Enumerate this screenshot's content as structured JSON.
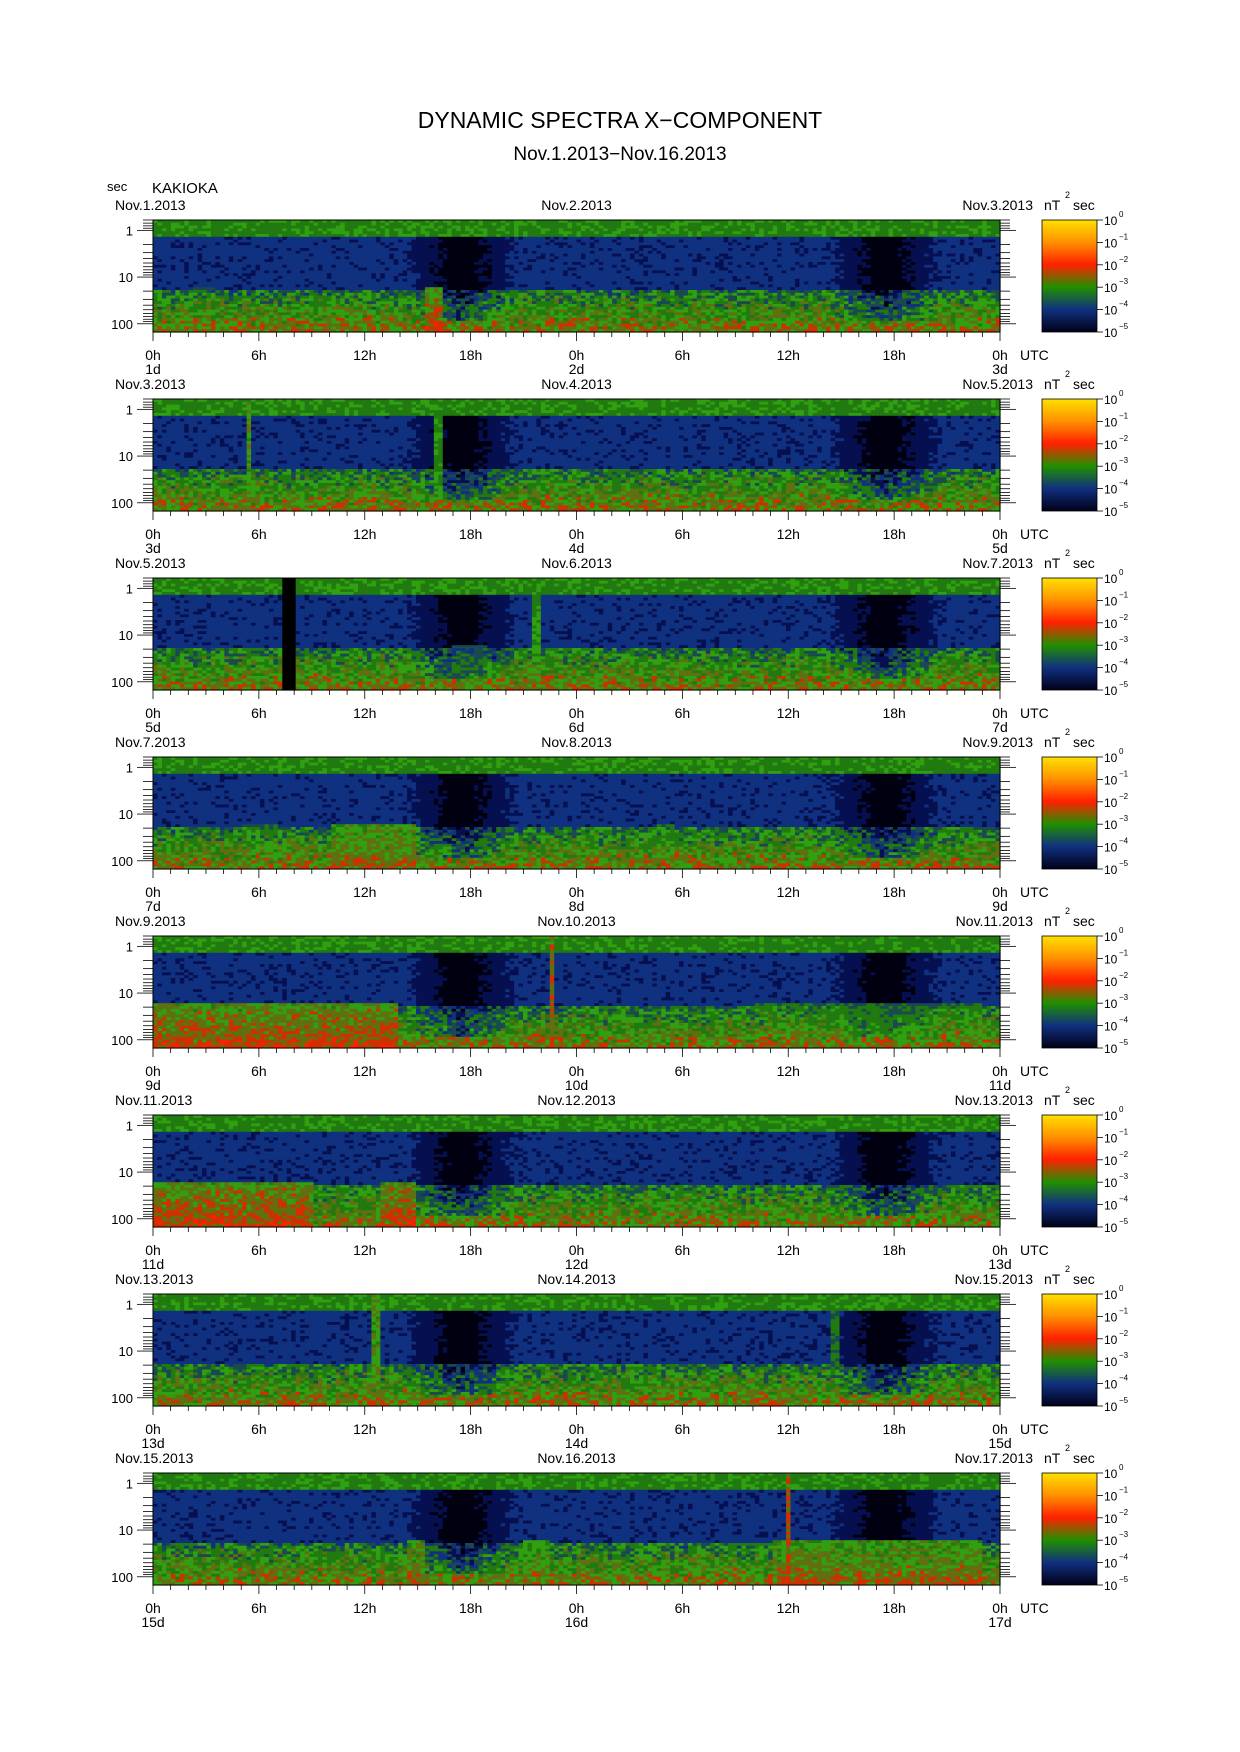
{
  "title": "DYNAMIC SPECTRA X−COMPONENT",
  "subtitle": "Nov.1.2013−Nov.16.2013",
  "y_unit_label": "sec",
  "station": "KAKIOKA",
  "time_zone_label": "UTC",
  "colorbar": {
    "unit": "nT",
    "unit_exponent": "2",
    "unit_suffix": "sec",
    "tick_base": "10",
    "tick_exponents": [
      "0",
      "−1",
      "−2",
      "−3",
      "−4",
      "−5"
    ],
    "colors": [
      "#ffe000",
      "#ff9000",
      "#ff2000",
      "#209000",
      "#103080",
      "#000018"
    ]
  },
  "chart_data": {
    "type": "heatmap",
    "title": "DYNAMIC SPECTRA X−COMPONENT",
    "subtitle": "Nov.1.2013−Nov.16.2013",
    "station": "KAKIOKA",
    "ylabel": "sec",
    "y_scale": "log",
    "y_ticks": [
      "1",
      "10",
      "100"
    ],
    "x_ticks": [
      "0h",
      "6h",
      "12h",
      "18h",
      "0h",
      "6h",
      "12h",
      "18h",
      "0h"
    ],
    "value_unit": "nT²sec",
    "color_scale": "log",
    "color_range": [
      "10^-5",
      "10^0"
    ],
    "panels": [
      {
        "left_date": "Nov.1.2013",
        "mid_date": "Nov.2.2013",
        "right_date": "Nov.3.2013",
        "day_labels": [
          "1d",
          "2d",
          "3d"
        ],
        "gaps": [
          [
            7.3,
            7.45
          ]
        ],
        "hotspots": [
          [
            15.3,
            16.5,
            0.9
          ],
          [
            2.2,
            3.5,
            0.5
          ]
        ]
      },
      {
        "left_date": "Nov.3.2013",
        "mid_date": "Nov.4.2013",
        "right_date": "Nov.5.2013",
        "day_labels": [
          "3d",
          "4d",
          "5d"
        ],
        "gaps": [],
        "hotspots": [
          [
            5.3,
            5.45,
            0.8
          ],
          [
            15.9,
            16.3,
            0.7
          ]
        ]
      },
      {
        "left_date": "Nov.5.2013",
        "mid_date": "Nov.6.2013",
        "right_date": "Nov.7.2013",
        "day_labels": [
          "5d",
          "6d",
          "7d"
        ],
        "gaps": [
          [
            7.4,
            8.0
          ]
        ],
        "hotspots": [
          [
            21.5,
            22.0,
            0.7
          ],
          [
            17.0,
            19.0,
            0.5
          ]
        ]
      },
      {
        "left_date": "Nov.7.2013",
        "mid_date": "Nov.8.2013",
        "right_date": "Nov.9.2013",
        "day_labels": [
          "7d",
          "8d",
          "9d"
        ],
        "gaps": [],
        "hotspots": [
          [
            10.0,
            15.0,
            0.8
          ],
          [
            5.0,
            7.0,
            0.6
          ],
          [
            28.5,
            29.5,
            0.6
          ]
        ]
      },
      {
        "left_date": "Nov.9.2013",
        "mid_date": "Nov.10.2013",
        "right_date": "Nov.11.2013",
        "day_labels": [
          "9d",
          "10d",
          "11d"
        ],
        "gaps": [],
        "hotspots": [
          [
            0.0,
            14.0,
            0.9
          ],
          [
            22.4,
            22.7,
            1.0
          ],
          [
            34.0,
            47.0,
            0.6
          ]
        ]
      },
      {
        "left_date": "Nov.11.2013",
        "mid_date": "Nov.12.2013",
        "right_date": "Nov.13.2013",
        "day_labels": [
          "11d",
          "12d",
          "13d"
        ],
        "gaps": [],
        "hotspots": [
          [
            0.0,
            9.0,
            0.9
          ],
          [
            13.0,
            15.0,
            0.9
          ]
        ]
      },
      {
        "left_date": "Nov.13.2013",
        "mid_date": "Nov.14.2013",
        "right_date": "Nov.15.2013",
        "day_labels": [
          "13d",
          "14d",
          "15d"
        ],
        "gaps": [],
        "hotspots": [
          [
            12.4,
            13.0,
            0.8
          ],
          [
            38.5,
            39.0,
            0.6
          ]
        ]
      },
      {
        "left_date": "Nov.15.2013",
        "mid_date": "Nov.16.2013",
        "right_date": "Nov.17.2013",
        "day_labels": [
          "15d",
          "16d",
          "17d"
        ],
        "gaps": [],
        "hotspots": [
          [
            14.5,
            15.5,
            0.8
          ],
          [
            21.0,
            22.5,
            0.7
          ],
          [
            35.0,
            47.0,
            0.8
          ],
          [
            35.8,
            36.0,
            1.0
          ]
        ]
      }
    ]
  }
}
